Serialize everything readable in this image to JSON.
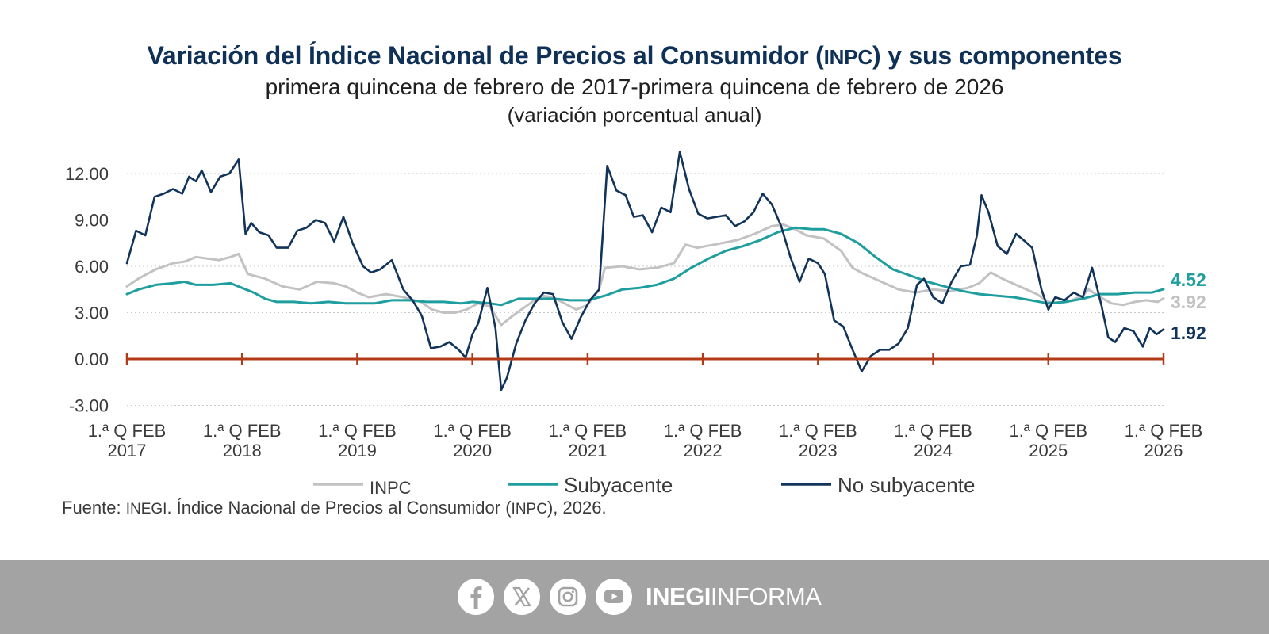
{
  "header": {
    "title_part1": "Variación del Índice Nacional de Precios al Consumidor (",
    "title_abbr": "INPC",
    "title_part2": ") y sus componentes",
    "subtitle": "primera quincena de febrero de 2017-primera quincena de febrero de 2026",
    "subtitle2": "(variación porcentual anual)"
  },
  "source": {
    "prefix": "Fuente: ",
    "org": "INEGI",
    "text1": ". Índice Nacional de Precios al Consumidor (",
    "abbr": "INPC",
    "text2": "), 2026."
  },
  "footer": {
    "icons": [
      "facebook-icon",
      "x-icon",
      "instagram-icon",
      "youtube-icon"
    ],
    "brand_bold": "INEGI",
    "brand_light": "INFORMA"
  },
  "colors": {
    "background": "#ffffff",
    "title": "#0f3057",
    "inpc": "#c2c2c2",
    "subyacente": "#1e9e9f",
    "no_subyacente": "#12345a",
    "zero_line": "#b33a16",
    "grid": "#c8c8c8",
    "footer": "#a3a3a3"
  },
  "chart_data": {
    "type": "line",
    "title": "Variación del Índice Nacional de Precios al Consumidor (INPC) y sus componentes",
    "xlabel": "",
    "ylabel": "",
    "ylim": [
      -3,
      13.5
    ],
    "xlim": [
      2017,
      2026
    ],
    "y_ticks": [
      "12.00",
      "9.00",
      "6.00",
      "3.00",
      "0.00",
      "-3.00"
    ],
    "y_tick_values": [
      12,
      9,
      6,
      3,
      0,
      -3
    ],
    "x_ticks": [
      {
        "line1": "1.ª Q FEB",
        "line2": "2017",
        "x": 2017
      },
      {
        "line1": "1.ª Q FEB",
        "line2": "2018",
        "x": 2018
      },
      {
        "line1": "1.ª Q FEB",
        "line2": "2019",
        "x": 2019
      },
      {
        "line1": "1.ª Q FEB",
        "line2": "2020",
        "x": 2020
      },
      {
        "line1": "1.ª Q FEB",
        "line2": "2021",
        "x": 2021
      },
      {
        "line1": "1.ª Q FEB",
        "line2": "2022",
        "x": 2022
      },
      {
        "line1": "1.ª Q FEB",
        "line2": "2023",
        "x": 2023
      },
      {
        "line1": "1.ª Q FEB",
        "line2": "2024",
        "x": 2024
      },
      {
        "line1": "1.ª Q FEB",
        "line2": "2025",
        "x": 2025
      },
      {
        "line1": "1.ª Q FEB",
        "line2": "2026",
        "x": 2026
      }
    ],
    "grid": true,
    "legend_position": "bottom",
    "series": [
      {
        "name": "INPC",
        "color": "#c2c2c2",
        "end_label": "3.92",
        "points": [
          [
            2017.0,
            4.7
          ],
          [
            2017.1,
            5.2
          ],
          [
            2017.25,
            5.8
          ],
          [
            2017.4,
            6.2
          ],
          [
            2017.5,
            6.3
          ],
          [
            2017.6,
            6.6
          ],
          [
            2017.7,
            6.5
          ],
          [
            2017.8,
            6.4
          ],
          [
            2017.9,
            6.6
          ],
          [
            2017.97,
            6.8
          ],
          [
            2018.05,
            5.5
          ],
          [
            2018.2,
            5.2
          ],
          [
            2018.35,
            4.7
          ],
          [
            2018.5,
            4.5
          ],
          [
            2018.65,
            5.0
          ],
          [
            2018.8,
            4.9
          ],
          [
            2018.9,
            4.7
          ],
          [
            2019.0,
            4.3
          ],
          [
            2019.1,
            4.0
          ],
          [
            2019.25,
            4.2
          ],
          [
            2019.4,
            4.0
          ],
          [
            2019.55,
            3.7
          ],
          [
            2019.65,
            3.2
          ],
          [
            2019.75,
            3.0
          ],
          [
            2019.85,
            3.0
          ],
          [
            2019.95,
            3.2
          ],
          [
            2020.05,
            3.6
          ],
          [
            2020.15,
            3.4
          ],
          [
            2020.25,
            2.2
          ],
          [
            2020.35,
            2.8
          ],
          [
            2020.5,
            3.6
          ],
          [
            2020.6,
            4.1
          ],
          [
            2020.7,
            4.0
          ],
          [
            2020.8,
            3.6
          ],
          [
            2020.9,
            3.2
          ],
          [
            2021.0,
            3.5
          ],
          [
            2021.1,
            4.5
          ],
          [
            2021.15,
            5.9
          ],
          [
            2021.3,
            6.0
          ],
          [
            2021.45,
            5.8
          ],
          [
            2021.6,
            5.9
          ],
          [
            2021.75,
            6.2
          ],
          [
            2021.85,
            7.4
          ],
          [
            2021.95,
            7.2
          ],
          [
            2022.1,
            7.4
          ],
          [
            2022.3,
            7.7
          ],
          [
            2022.45,
            8.1
          ],
          [
            2022.6,
            8.6
          ],
          [
            2022.7,
            8.7
          ],
          [
            2022.8,
            8.4
          ],
          [
            2022.9,
            8.0
          ],
          [
            2023.05,
            7.8
          ],
          [
            2023.2,
            7.0
          ],
          [
            2023.3,
            5.9
          ],
          [
            2023.4,
            5.5
          ],
          [
            2023.55,
            5.0
          ],
          [
            2023.7,
            4.5
          ],
          [
            2023.85,
            4.3
          ],
          [
            2024.0,
            4.5
          ],
          [
            2024.15,
            4.4
          ],
          [
            2024.3,
            4.6
          ],
          [
            2024.4,
            4.9
          ],
          [
            2024.5,
            5.6
          ],
          [
            2024.6,
            5.2
          ],
          [
            2024.75,
            4.7
          ],
          [
            2024.9,
            4.2
          ],
          [
            2025.0,
            3.7
          ],
          [
            2025.1,
            3.6
          ],
          [
            2025.2,
            3.8
          ],
          [
            2025.3,
            4.1
          ],
          [
            2025.35,
            4.5
          ],
          [
            2025.45,
            4.0
          ],
          [
            2025.55,
            3.6
          ],
          [
            2025.65,
            3.5
          ],
          [
            2025.75,
            3.7
          ],
          [
            2025.85,
            3.8
          ],
          [
            2025.95,
            3.7
          ],
          [
            2026.0,
            3.92
          ]
        ]
      },
      {
        "name": "Subyacente",
        "color": "#1e9e9f",
        "end_label": "4.52",
        "points": [
          [
            2017.0,
            4.2
          ],
          [
            2017.1,
            4.5
          ],
          [
            2017.25,
            4.8
          ],
          [
            2017.4,
            4.9
          ],
          [
            2017.5,
            5.0
          ],
          [
            2017.6,
            4.8
          ],
          [
            2017.75,
            4.8
          ],
          [
            2017.9,
            4.9
          ],
          [
            2018.0,
            4.6
          ],
          [
            2018.1,
            4.3
          ],
          [
            2018.2,
            3.9
          ],
          [
            2018.3,
            3.7
          ],
          [
            2018.45,
            3.7
          ],
          [
            2018.6,
            3.6
          ],
          [
            2018.75,
            3.7
          ],
          [
            2018.9,
            3.6
          ],
          [
            2019.0,
            3.6
          ],
          [
            2019.15,
            3.6
          ],
          [
            2019.3,
            3.8
          ],
          [
            2019.45,
            3.8
          ],
          [
            2019.6,
            3.7
          ],
          [
            2019.75,
            3.7
          ],
          [
            2019.9,
            3.6
          ],
          [
            2020.0,
            3.7
          ],
          [
            2020.15,
            3.6
          ],
          [
            2020.25,
            3.5
          ],
          [
            2020.4,
            3.9
          ],
          [
            2020.55,
            3.9
          ],
          [
            2020.7,
            3.9
          ],
          [
            2020.85,
            3.8
          ],
          [
            2021.0,
            3.8
          ],
          [
            2021.15,
            4.1
          ],
          [
            2021.3,
            4.5
          ],
          [
            2021.45,
            4.6
          ],
          [
            2021.6,
            4.8
          ],
          [
            2021.75,
            5.2
          ],
          [
            2021.9,
            5.9
          ],
          [
            2022.05,
            6.5
          ],
          [
            2022.2,
            7.0
          ],
          [
            2022.35,
            7.3
          ],
          [
            2022.5,
            7.7
          ],
          [
            2022.65,
            8.2
          ],
          [
            2022.8,
            8.5
          ],
          [
            2022.95,
            8.4
          ],
          [
            2023.05,
            8.4
          ],
          [
            2023.2,
            8.1
          ],
          [
            2023.35,
            7.5
          ],
          [
            2023.5,
            6.6
          ],
          [
            2023.65,
            5.8
          ],
          [
            2023.8,
            5.4
          ],
          [
            2023.95,
            5.0
          ],
          [
            2024.1,
            4.7
          ],
          [
            2024.25,
            4.4
          ],
          [
            2024.4,
            4.2
          ],
          [
            2024.55,
            4.1
          ],
          [
            2024.7,
            4.0
          ],
          [
            2024.85,
            3.8
          ],
          [
            2025.0,
            3.6
          ],
          [
            2025.15,
            3.7
          ],
          [
            2025.3,
            3.9
          ],
          [
            2025.45,
            4.2
          ],
          [
            2025.6,
            4.2
          ],
          [
            2025.75,
            4.3
          ],
          [
            2025.9,
            4.3
          ],
          [
            2026.0,
            4.52
          ]
        ]
      },
      {
        "name": "No subyacente",
        "color": "#12345a",
        "end_label": "1.92",
        "points": [
          [
            2017.0,
            6.2
          ],
          [
            2017.08,
            8.3
          ],
          [
            2017.16,
            8.0
          ],
          [
            2017.24,
            10.5
          ],
          [
            2017.32,
            10.7
          ],
          [
            2017.4,
            11.0
          ],
          [
            2017.48,
            10.7
          ],
          [
            2017.54,
            11.8
          ],
          [
            2017.6,
            11.5
          ],
          [
            2017.65,
            12.2
          ],
          [
            2017.73,
            10.8
          ],
          [
            2017.81,
            11.8
          ],
          [
            2017.89,
            12.0
          ],
          [
            2017.97,
            12.9
          ],
          [
            2018.03,
            8.1
          ],
          [
            2018.08,
            8.8
          ],
          [
            2018.15,
            8.2
          ],
          [
            2018.23,
            8.0
          ],
          [
            2018.3,
            7.2
          ],
          [
            2018.4,
            7.2
          ],
          [
            2018.48,
            8.3
          ],
          [
            2018.56,
            8.5
          ],
          [
            2018.64,
            9.0
          ],
          [
            2018.72,
            8.8
          ],
          [
            2018.8,
            7.6
          ],
          [
            2018.88,
            9.2
          ],
          [
            2018.96,
            7.5
          ],
          [
            2019.05,
            6.0
          ],
          [
            2019.12,
            5.6
          ],
          [
            2019.2,
            5.8
          ],
          [
            2019.3,
            6.4
          ],
          [
            2019.4,
            4.5
          ],
          [
            2019.48,
            3.8
          ],
          [
            2019.56,
            2.8
          ],
          [
            2019.64,
            0.7
          ],
          [
            2019.72,
            0.8
          ],
          [
            2019.8,
            1.1
          ],
          [
            2019.88,
            0.6
          ],
          [
            2019.94,
            0.1
          ],
          [
            2020.0,
            1.6
          ],
          [
            2020.05,
            2.3
          ],
          [
            2020.13,
            4.6
          ],
          [
            2020.2,
            2.0
          ],
          [
            2020.25,
            -2.0
          ],
          [
            2020.3,
            -1.2
          ],
          [
            2020.38,
            1.0
          ],
          [
            2020.46,
            2.5
          ],
          [
            2020.54,
            3.6
          ],
          [
            2020.62,
            4.3
          ],
          [
            2020.7,
            4.2
          ],
          [
            2020.78,
            2.4
          ],
          [
            2020.86,
            1.3
          ],
          [
            2020.94,
            2.7
          ],
          [
            2021.02,
            3.8
          ],
          [
            2021.1,
            4.5
          ],
          [
            2021.17,
            12.5
          ],
          [
            2021.25,
            10.9
          ],
          [
            2021.33,
            10.6
          ],
          [
            2021.4,
            9.2
          ],
          [
            2021.48,
            9.3
          ],
          [
            2021.56,
            8.2
          ],
          [
            2021.64,
            9.8
          ],
          [
            2021.72,
            9.5
          ],
          [
            2021.8,
            13.4
          ],
          [
            2021.88,
            11.0
          ],
          [
            2021.96,
            9.4
          ],
          [
            2022.04,
            9.1
          ],
          [
            2022.12,
            9.2
          ],
          [
            2022.2,
            9.3
          ],
          [
            2022.28,
            8.6
          ],
          [
            2022.36,
            8.9
          ],
          [
            2022.44,
            9.5
          ],
          [
            2022.52,
            10.7
          ],
          [
            2022.6,
            10.0
          ],
          [
            2022.68,
            8.6
          ],
          [
            2022.76,
            6.6
          ],
          [
            2022.84,
            5.0
          ],
          [
            2022.92,
            6.5
          ],
          [
            2023.0,
            6.2
          ],
          [
            2023.06,
            5.5
          ],
          [
            2023.14,
            2.5
          ],
          [
            2023.22,
            2.1
          ],
          [
            2023.3,
            0.6
          ],
          [
            2023.38,
            -0.8
          ],
          [
            2023.46,
            0.2
          ],
          [
            2023.54,
            0.6
          ],
          [
            2023.62,
            0.6
          ],
          [
            2023.7,
            1.0
          ],
          [
            2023.78,
            2.0
          ],
          [
            2023.86,
            4.8
          ],
          [
            2023.92,
            5.2
          ],
          [
            2024.0,
            4.0
          ],
          [
            2024.08,
            3.6
          ],
          [
            2024.16,
            5.0
          ],
          [
            2024.24,
            6.0
          ],
          [
            2024.32,
            6.1
          ],
          [
            2024.38,
            8.0
          ],
          [
            2024.42,
            10.6
          ],
          [
            2024.48,
            9.5
          ],
          [
            2024.56,
            7.3
          ],
          [
            2024.64,
            6.8
          ],
          [
            2024.72,
            8.1
          ],
          [
            2024.8,
            7.6
          ],
          [
            2024.86,
            7.2
          ],
          [
            2024.94,
            4.5
          ],
          [
            2025.0,
            3.2
          ],
          [
            2025.06,
            4.0
          ],
          [
            2025.14,
            3.8
          ],
          [
            2025.22,
            4.3
          ],
          [
            2025.3,
            4.0
          ],
          [
            2025.38,
            5.9
          ],
          [
            2025.46,
            3.5
          ],
          [
            2025.52,
            1.4
          ],
          [
            2025.58,
            1.1
          ],
          [
            2025.66,
            2.0
          ],
          [
            2025.74,
            1.8
          ],
          [
            2025.82,
            0.8
          ],
          [
            2025.88,
            2.0
          ],
          [
            2025.94,
            1.6
          ],
          [
            2026.0,
            1.92
          ]
        ]
      }
    ]
  }
}
